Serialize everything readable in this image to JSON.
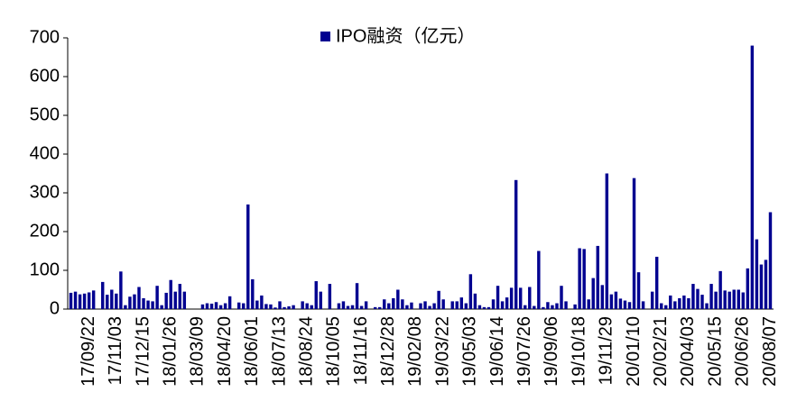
{
  "chart_data": {
    "type": "bar",
    "series": [
      {
        "name": "IPO融资（亿元）",
        "color": "#000090",
        "values": [
          42,
          45,
          38,
          40,
          43,
          48,
          0,
          70,
          37,
          50,
          40,
          97,
          10,
          32,
          38,
          57,
          28,
          22,
          20,
          60,
          10,
          42,
          75,
          45,
          65,
          45,
          0,
          0,
          0,
          12,
          15,
          14,
          18,
          10,
          15,
          33,
          0,
          17,
          15,
          270,
          77,
          22,
          35,
          13,
          12,
          4,
          20,
          5,
          7,
          10,
          0,
          20,
          15,
          10,
          72,
          45,
          0,
          65,
          0,
          15,
          20,
          8,
          10,
          67,
          8,
          20,
          0,
          5,
          5,
          25,
          15,
          28,
          50,
          25,
          10,
          17,
          0,
          15,
          20,
          8,
          15,
          47,
          25,
          0,
          20,
          20,
          30,
          15,
          90,
          40,
          10,
          5,
          5,
          25,
          60,
          20,
          30,
          55,
          333,
          55,
          10,
          57,
          8,
          150,
          5,
          18,
          10,
          15,
          60,
          20,
          0,
          12,
          157,
          155,
          25,
          80,
          163,
          62,
          350,
          38,
          45,
          27,
          22,
          18,
          338,
          95,
          20,
          0,
          45,
          135,
          15,
          10,
          35,
          20,
          28,
          35,
          28,
          65,
          52,
          37,
          15,
          65,
          45,
          98,
          48,
          45,
          50,
          50,
          43,
          105,
          680,
          180,
          115,
          127,
          250
        ]
      }
    ],
    "categories": [
      null,
      null,
      null,
      null,
      "17/09/22",
      null,
      null,
      null,
      null,
      null,
      "17/11/03",
      null,
      null,
      null,
      null,
      null,
      "17/12/15",
      null,
      null,
      null,
      null,
      null,
      "18/01/26",
      null,
      null,
      null,
      null,
      null,
      "18/03/09",
      null,
      null,
      null,
      null,
      null,
      "18/04/20",
      null,
      null,
      null,
      null,
      null,
      "18/06/01",
      null,
      null,
      null,
      null,
      null,
      "18/07/13",
      null,
      null,
      null,
      null,
      null,
      "18/08/24",
      null,
      null,
      null,
      null,
      null,
      "18/10/05",
      null,
      null,
      null,
      null,
      null,
      "18/11/16",
      null,
      null,
      null,
      null,
      null,
      "18/12/28",
      null,
      null,
      null,
      null,
      null,
      "19/02/08",
      null,
      null,
      null,
      null,
      null,
      "19/03/22",
      null,
      null,
      null,
      null,
      null,
      "19/05/03",
      null,
      null,
      null,
      null,
      null,
      "19/06/14",
      null,
      null,
      null,
      null,
      null,
      "19/07/26",
      null,
      null,
      null,
      null,
      null,
      "19/09/06",
      null,
      null,
      null,
      null,
      null,
      "19/10/18",
      null,
      null,
      null,
      null,
      null,
      "19/11/29",
      null,
      null,
      null,
      null,
      null,
      "20/01/10",
      null,
      null,
      null,
      null,
      null,
      "20/02/21",
      null,
      null,
      null,
      null,
      null,
      "20/04/03",
      null,
      null,
      null,
      null,
      null,
      "20/05/15",
      null,
      null,
      null,
      null,
      null,
      "20/06/26",
      null,
      null,
      null,
      null,
      null,
      "20/08/07"
    ],
    "ylim": [
      0,
      700
    ],
    "yticks": [
      0,
      100,
      200,
      300,
      400,
      500,
      600,
      700
    ],
    "legend": "top"
  }
}
